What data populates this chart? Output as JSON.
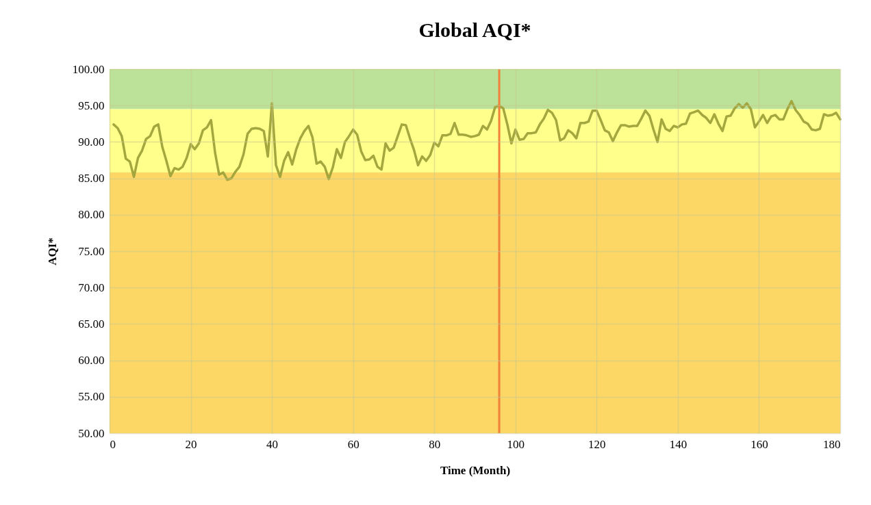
{
  "chart_data": {
    "type": "line",
    "title": "Global AQI*",
    "xlabel": "Time (Month)",
    "ylabel": "AQI*",
    "x": [
      1,
      2,
      3,
      4,
      5,
      6,
      7,
      8,
      9,
      10,
      11,
      12,
      13,
      14,
      15,
      16,
      17,
      18,
      19,
      20,
      21,
      22,
      23,
      24,
      25,
      26,
      27,
      28,
      29,
      30,
      31,
      32,
      33,
      34,
      35,
      36,
      37,
      38,
      39,
      40,
      41,
      42,
      43,
      44,
      45,
      46,
      47,
      48,
      49,
      50,
      51,
      52,
      53,
      54,
      55,
      56,
      57,
      58,
      59,
      60,
      61,
      62,
      63,
      64,
      65,
      66,
      67,
      68,
      69,
      70,
      71,
      72,
      73,
      74,
      75,
      76,
      77,
      78,
      79,
      80,
      81,
      82,
      83,
      84,
      85,
      86,
      87,
      88,
      89,
      90,
      91,
      92,
      93,
      94,
      95,
      96,
      97,
      98,
      99,
      100,
      101,
      102,
      103,
      104,
      105,
      106,
      107,
      108,
      109,
      110,
      111,
      112,
      113,
      114,
      115,
      116,
      117,
      118,
      119,
      120,
      121,
      122,
      123,
      124,
      125,
      126,
      127,
      128,
      129,
      130,
      131,
      132,
      133,
      134,
      135,
      136,
      137,
      138,
      139,
      140,
      141,
      142,
      143,
      144,
      145,
      146,
      147,
      148,
      149,
      150,
      151,
      152,
      153,
      154,
      155,
      156,
      157,
      158,
      159,
      160,
      161,
      162,
      163,
      164,
      165,
      166,
      167,
      168,
      169,
      170,
      171,
      172,
      173,
      174,
      175,
      176,
      177,
      178,
      179,
      180
    ],
    "series": [
      {
        "color": "#9fa23a",
        "values": [
          92.4,
          91.9,
          90.8,
          87.7,
          87.3,
          85.2,
          87.8,
          88.8,
          90.4,
          90.8,
          92.1,
          92.4,
          89.3,
          87.4,
          85.3,
          86.4,
          86.2,
          86.6,
          87.8,
          89.7,
          89.0,
          89.8,
          91.6,
          92.0,
          93.0,
          88.5,
          85.5,
          85.8,
          84.8,
          85.0,
          85.9,
          86.6,
          88.3,
          91.1,
          91.8,
          91.9,
          91.8,
          91.5,
          88.0,
          95.3,
          86.8,
          85.2,
          87.4,
          88.6,
          86.9,
          89.0,
          90.5,
          91.5,
          92.2,
          90.6,
          87.0,
          87.3,
          86.6,
          84.9,
          86.5,
          89.0,
          87.8,
          90.0,
          90.8,
          91.7,
          91.0,
          88.7,
          87.5,
          87.6,
          88.1,
          86.6,
          86.2,
          89.8,
          88.8,
          89.2,
          90.8,
          92.4,
          92.3,
          90.5,
          88.9,
          86.8,
          88.0,
          87.4,
          88.2,
          89.9,
          89.4,
          90.9,
          90.9,
          91.1,
          92.6,
          91.0,
          91.0,
          90.9,
          90.7,
          90.8,
          91.0,
          92.2,
          91.7,
          92.9,
          94.8,
          95.0,
          94.6,
          92.4,
          89.8,
          91.7,
          90.3,
          90.4,
          91.2,
          91.2,
          91.3,
          92.4,
          93.2,
          94.4,
          94.0,
          93.0,
          90.2,
          90.5,
          91.6,
          91.2,
          90.5,
          92.6,
          92.6,
          92.8,
          94.3,
          94.3,
          93.0,
          91.6,
          91.3,
          90.1,
          91.3,
          92.3,
          92.3,
          92.1,
          92.2,
          92.2,
          93.2,
          94.3,
          93.6,
          91.7,
          90.0,
          93.1,
          91.8,
          91.5,
          92.2,
          92.0,
          92.4,
          92.5,
          93.9,
          94.1,
          94.3,
          93.7,
          93.3,
          92.6,
          93.8,
          92.5,
          91.5,
          93.5,
          93.6,
          94.6,
          95.2,
          94.7,
          95.3,
          94.5,
          92.0,
          92.8,
          93.7,
          92.6,
          93.5,
          93.7,
          93.1,
          93.1,
          94.5,
          95.6,
          94.4,
          93.7,
          92.8,
          92.5,
          91.7,
          91.6,
          91.8,
          93.8,
          93.6,
          93.7,
          94.0,
          93.1
        ]
      }
    ],
    "xlim": [
      0,
      180
    ],
    "xticks": [
      0,
      20,
      40,
      60,
      80,
      100,
      120,
      140,
      160,
      180
    ],
    "ylim": [
      50,
      100
    ],
    "yticks": [
      {
        "value": 50,
        "label": "50.00"
      },
      {
        "value": 55,
        "label": "55.00"
      },
      {
        "value": 60,
        "label": "60.00"
      },
      {
        "value": 65,
        "label": "65.00"
      },
      {
        "value": 70,
        "label": "70.00"
      },
      {
        "value": 75,
        "label": "75.00"
      },
      {
        "value": 80,
        "label": "80.00"
      },
      {
        "value": 85,
        "label": "85.00"
      },
      {
        "value": 90,
        "label": "90.00"
      },
      {
        "value": 95,
        "label": "95.00"
      },
      {
        "value": 100,
        "label": "100.00"
      }
    ],
    "bands": [
      {
        "axis": "y",
        "from": 94.5,
        "to": 100,
        "color": "#bce29a"
      },
      {
        "axis": "y",
        "from": 85.8,
        "to": 94.5,
        "color": "#ffff8c"
      },
      {
        "axis": "y",
        "from": 50,
        "to": 85.8,
        "color": "#fdd766"
      }
    ],
    "ref_lines": [
      {
        "axis": "x",
        "value": 96,
        "color": "#f0803a"
      }
    ],
    "grid": true,
    "marker": "none",
    "line_style": "solid"
  }
}
